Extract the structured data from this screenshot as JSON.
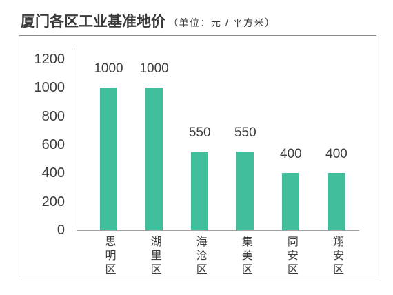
{
  "colors": {
    "bar": "#41be9c",
    "text": "#3d3d3d",
    "frame": "#8c8c8c",
    "axis": "#a0a0a0"
  },
  "chart_data": {
    "type": "bar",
    "title": "厦门各区工业基准地价",
    "subtitle": "（单位：元 / 平方米）",
    "categories": [
      "思明区",
      "湖里区",
      "海沧区",
      "集美区",
      "同安区",
      "翔安区"
    ],
    "values": [
      1000,
      1000,
      550,
      550,
      400,
      400
    ],
    "ylim": [
      0,
      1200
    ],
    "yticks": [
      0,
      200,
      400,
      600,
      800,
      1000,
      1200
    ],
    "grid": false
  }
}
